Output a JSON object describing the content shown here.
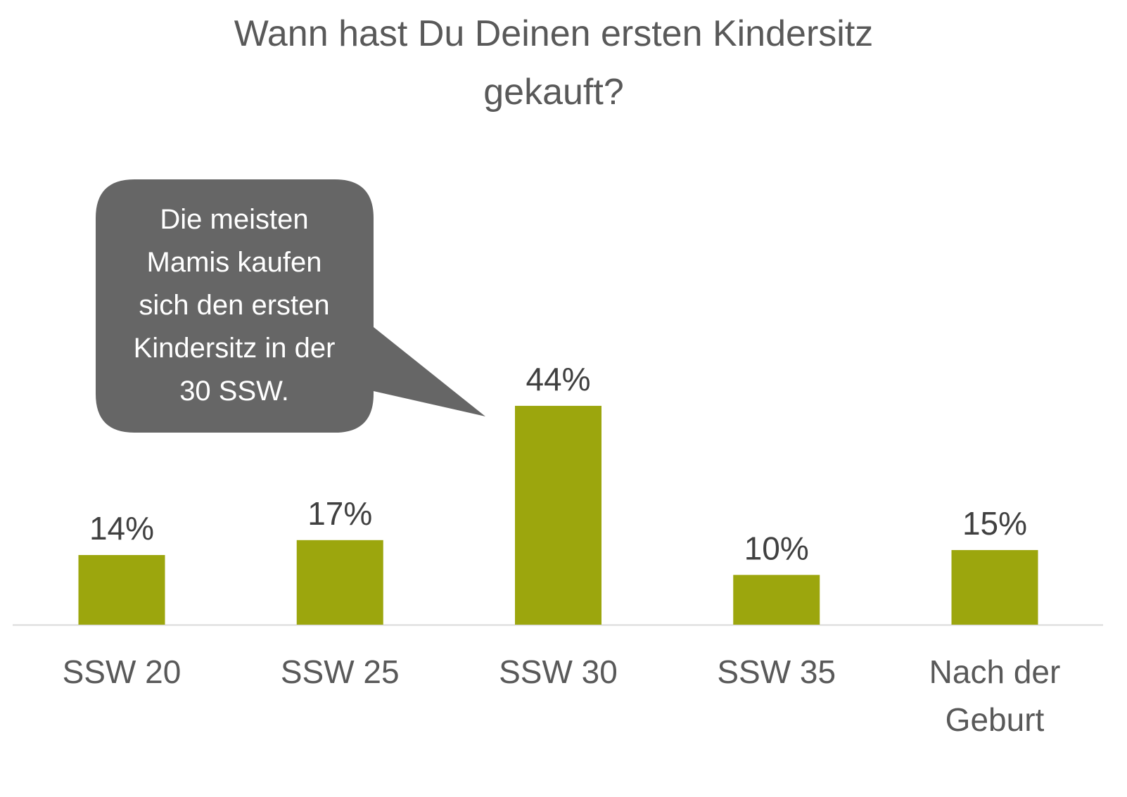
{
  "chart_data": {
    "type": "bar",
    "title_lines": [
      "Wann hast Du Deinen ersten Kindersitz",
      "gekauft?"
    ],
    "categories": [
      [
        "SSW 20"
      ],
      [
        "SSW 25"
      ],
      [
        "SSW 30"
      ],
      [
        "SSW 35"
      ],
      [
        "Nach der",
        "Geburt"
      ]
    ],
    "values": [
      14,
      17,
      44,
      10,
      15
    ],
    "value_labels": [
      "14%",
      "17%",
      "44%",
      "10%",
      "15%"
    ],
    "unit": "%",
    "ylim": [
      0,
      50
    ],
    "grid": false,
    "bar_color": "#9ca60d",
    "annotation": {
      "lines": [
        "Die meisten",
        "Mamis kaufen",
        "sich den ersten",
        "Kindersitz in der",
        "30 SSW."
      ],
      "target_category": "SSW 30",
      "fill": "#666666"
    }
  }
}
